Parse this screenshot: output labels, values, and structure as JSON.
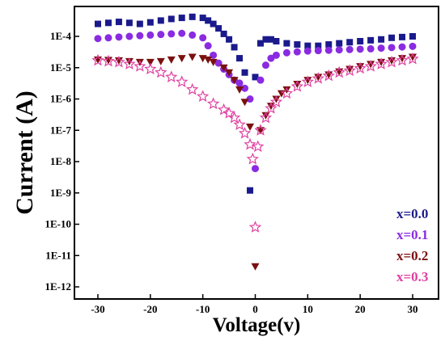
{
  "chart_data": {
    "type": "scatter",
    "title": "",
    "xlabel": "Voltage(v)",
    "ylabel": "Current (A)",
    "xlim": [
      -35,
      35
    ],
    "ylim": [
      1e-12,
      0.001
    ],
    "y_scale": "log",
    "grid": false,
    "legend_position": "bottom-right",
    "x_ticks": [
      -30,
      -20,
      -10,
      0,
      10,
      20,
      30
    ],
    "x_tick_labels": [
      "-30",
      "-20",
      "-10",
      "0",
      "10",
      "20",
      "30"
    ],
    "y_ticks": [
      1e-12,
      1e-11,
      1e-10,
      1e-09,
      1e-08,
      1e-07,
      1e-06,
      1e-05,
      0.0001
    ],
    "y_tick_labels": [
      "1E-12",
      "1E-11",
      "1E-10",
      "1E-9",
      "1E-8",
      "1E-7",
      "1E-6",
      "1E-5",
      "1E-4"
    ],
    "series": [
      {
        "name": "x=0.0",
        "color": "#1a1a8c",
        "marker": "square",
        "x": [
          -30,
          -28,
          -26,
          -24,
          -22,
          -20,
          -18,
          -16,
          -14,
          -12,
          -10,
          -9,
          -8,
          -7,
          -6,
          -5,
          -4,
          -3,
          -2,
          -1,
          0,
          1,
          2,
          3,
          4,
          6,
          8,
          10,
          12,
          14,
          16,
          18,
          20,
          22,
          24,
          26,
          28,
          30
        ],
        "y": [
          0.00025,
          0.00027,
          0.00029,
          0.00027,
          0.00025,
          0.00028,
          0.00032,
          0.00036,
          0.00039,
          0.00042,
          0.00039,
          0.00032,
          0.00025,
          0.00018,
          0.00012,
          8e-05,
          4.5e-05,
          2e-05,
          7e-06,
          1.2e-09,
          5e-06,
          6e-05,
          8e-05,
          8e-05,
          7e-05,
          6e-05,
          5.5e-05,
          5e-05,
          5e-05,
          5.5e-05,
          6e-05,
          6.5e-05,
          7e-05,
          7.5e-05,
          8e-05,
          9e-05,
          9.5e-05,
          0.0001
        ]
      },
      {
        "name": "x=0.1",
        "color": "#8a2be2",
        "marker": "circle",
        "x": [
          -30,
          -28,
          -26,
          -24,
          -22,
          -20,
          -18,
          -16,
          -14,
          -12,
          -10,
          -9,
          -8,
          -7,
          -6,
          -5,
          -4,
          -3,
          -2,
          -1,
          0,
          1,
          2,
          3,
          4,
          6,
          8,
          10,
          12,
          14,
          16,
          18,
          20,
          22,
          24,
          26,
          28,
          30
        ],
        "y": [
          8.5e-05,
          9e-05,
          9.5e-05,
          0.0001,
          0.000105,
          0.00011,
          0.000115,
          0.00012,
          0.000125,
          0.00011,
          9e-05,
          5e-05,
          2.5e-05,
          1.4e-05,
          9e-06,
          6e-06,
          4e-06,
          3.2e-06,
          2.2e-06,
          1e-06,
          6e-09,
          4e-06,
          1.2e-05,
          2e-05,
          2.5e-05,
          3e-05,
          3.2e-05,
          3.4e-05,
          3.5e-05,
          3.6e-05,
          3.7e-05,
          3.8e-05,
          3.9e-05,
          4e-05,
          4.2e-05,
          4.4e-05,
          4.6e-05,
          4.8e-05
        ]
      },
      {
        "name": "x=0.2",
        "color": "#7a1010",
        "marker": "triangle-down",
        "x": [
          -30,
          -28,
          -26,
          -24,
          -22,
          -20,
          -18,
          -16,
          -14,
          -12,
          -10,
          -9,
          -8,
          -6,
          -5,
          -4,
          -3,
          -2,
          -1,
          0,
          1,
          2,
          3,
          4,
          5,
          6,
          8,
          10,
          12,
          14,
          16,
          18,
          20,
          22,
          24,
          26,
          28,
          30
        ],
        "y": [
          1.8e-05,
          1.75e-05,
          1.7e-05,
          1.6e-05,
          1.5e-05,
          1.5e-05,
          1.6e-05,
          1.8e-05,
          2e-05,
          2.2e-05,
          2e-05,
          1.8e-05,
          1.5e-05,
          1e-05,
          7e-06,
          4e-06,
          2e-06,
          8e-07,
          1.3e-07,
          4.5e-12,
          1e-07,
          3e-07,
          6e-07,
          1e-06,
          1.5e-06,
          2e-06,
          3e-06,
          4e-06,
          5e-06,
          6e-06,
          7.5e-06,
          9e-06,
          1.1e-05,
          1.3e-05,
          1.5e-05,
          1.7e-05,
          2e-05,
          2.2e-05
        ]
      },
      {
        "name": "x=0.3",
        "color": "#e040a0",
        "marker": "star",
        "x": [
          -30,
          -28,
          -26,
          -24,
          -22,
          -20,
          -18,
          -16,
          -14,
          -12,
          -10,
          -8,
          -6,
          -5,
          -4,
          -3,
          -2,
          -1,
          -0.5,
          0,
          0.5,
          1,
          2,
          3,
          4,
          6,
          8,
          10,
          12,
          14,
          16,
          18,
          20,
          22,
          24,
          26,
          28,
          30
        ],
        "y": [
          1.7e-05,
          1.6e-05,
          1.5e-05,
          1.3e-05,
          1.1e-05,
          9e-06,
          7e-06,
          5e-06,
          3.5e-06,
          2e-06,
          1.2e-06,
          7e-07,
          4.5e-07,
          3.5e-07,
          2.5e-07,
          1.5e-07,
          8e-08,
          3.5e-08,
          1.2e-08,
          8e-11,
          3e-08,
          1e-07,
          2.5e-07,
          5e-07,
          8e-07,
          1.5e-06,
          2.5e-06,
          3.5e-06,
          4.5e-06,
          5.5e-06,
          7e-06,
          8e-06,
          9.5e-06,
          1.1e-05,
          1.3e-05,
          1.5e-05,
          1.7e-05,
          1.9e-05
        ]
      }
    ]
  }
}
